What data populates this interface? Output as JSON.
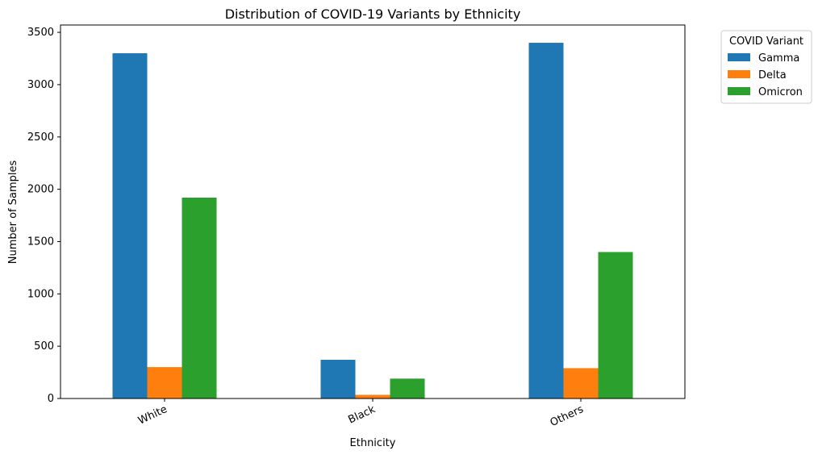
{
  "chart_data": {
    "type": "bar",
    "title": "Distribution of COVID-19 Variants by Ethnicity",
    "xlabel": "Ethnicity",
    "ylabel": "Number of Samples",
    "categories": [
      "White",
      "Black",
      "Others"
    ],
    "series": [
      {
        "name": "Gamma",
        "color": "#1f77b4",
        "values": [
          3300,
          370,
          3400
        ]
      },
      {
        "name": "Delta",
        "color": "#ff7f0e",
        "values": [
          300,
          35,
          290
        ]
      },
      {
        "name": "Omicron",
        "color": "#2ca02c",
        "values": [
          1920,
          190,
          1400
        ]
      }
    ],
    "ylim": [
      0,
      3570
    ],
    "yticks": [
      0,
      500,
      1000,
      1500,
      2000,
      2500,
      3000,
      3500
    ],
    "grid": false,
    "legend": {
      "title": "COVID Variant",
      "placement": "outside-top-right"
    }
  }
}
